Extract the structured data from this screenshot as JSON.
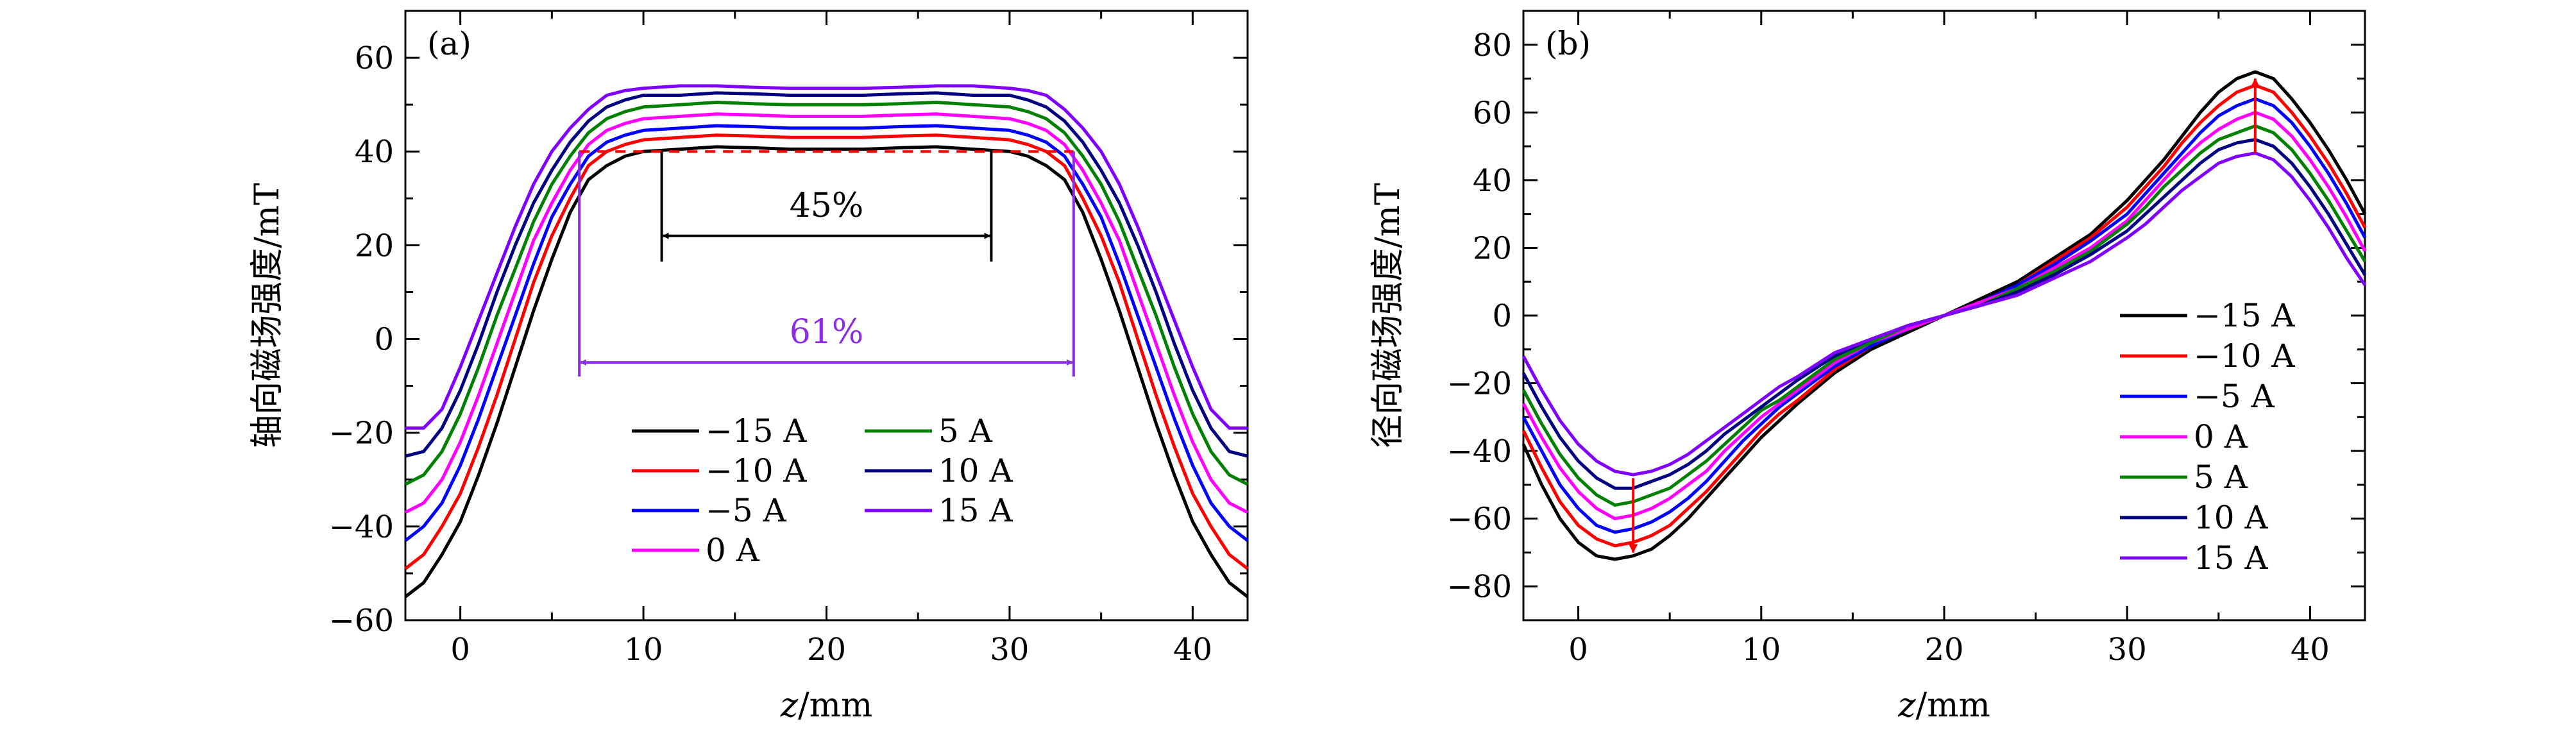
{
  "chart_data": [
    {
      "type": "line",
      "panel_label": "(a)",
      "xlabel": "z/mm",
      "ylabel": "轴向磁场强度/mT",
      "xlim": [
        -3,
        43
      ],
      "ylim": [
        -60,
        70
      ],
      "xticks": [
        0,
        10,
        20,
        30,
        40
      ],
      "yticks": [
        -60,
        -40,
        -20,
        0,
        20,
        40,
        60
      ],
      "x": [
        -3,
        -2,
        -1,
        0,
        1,
        2,
        3,
        4,
        5,
        6,
        7,
        8,
        9,
        10,
        12,
        14,
        16,
        18,
        20,
        22,
        24,
        26,
        28,
        30,
        31,
        32,
        33,
        34,
        35,
        36,
        37,
        38,
        39,
        40,
        41,
        42,
        43
      ],
      "legend_placement": "bottom-center, two columns",
      "series": [
        {
          "name": "−15 A",
          "color": "#000000",
          "values": [
            -55,
            -52,
            -46,
            -39,
            -29,
            -18,
            -6,
            6,
            17,
            27,
            34,
            37,
            39,
            40,
            40.5,
            41,
            40.8,
            40.5,
            40.5,
            40.5,
            40.8,
            41,
            40.5,
            40,
            39,
            37,
            34,
            27,
            17,
            6,
            -6,
            -18,
            -29,
            -39,
            -46,
            -52,
            -55
          ]
        },
        {
          "name": "−10 A",
          "color": "#ff0000",
          "values": [
            -49,
            -46,
            -40,
            -33,
            -23,
            -12,
            0,
            12,
            22,
            30,
            37,
            40,
            41.5,
            42.5,
            43,
            43.5,
            43.3,
            43,
            43,
            43,
            43.3,
            43.5,
            43,
            42.5,
            41.5,
            40,
            37,
            30,
            22,
            12,
            0,
            -12,
            -23,
            -33,
            -40,
            -46,
            -49
          ]
        },
        {
          "name": "−5 A",
          "color": "#0000ff",
          "values": [
            -43,
            -40,
            -35,
            -27,
            -17,
            -6,
            5,
            16,
            26,
            33,
            39,
            42,
            43.5,
            44.5,
            45,
            45.5,
            45.3,
            45,
            45,
            45,
            45.3,
            45.5,
            45,
            44.5,
            43.5,
            42,
            39,
            33,
            26,
            16,
            5,
            -6,
            -17,
            -27,
            -35,
            -40,
            -43
          ]
        },
        {
          "name": "0 A",
          "color": "#ff00ff",
          "values": [
            -37,
            -35,
            -30,
            -22,
            -12,
            -1,
            10,
            21,
            29,
            36,
            41.5,
            44.5,
            46,
            47,
            47.5,
            48,
            47.8,
            47.5,
            47.5,
            47.5,
            47.8,
            48,
            47.5,
            47,
            46,
            44.5,
            41.5,
            36,
            29,
            21,
            10,
            -1,
            -12,
            -22,
            -30,
            -35,
            -37
          ]
        },
        {
          "name": "5 A",
          "color": "#008000",
          "values": [
            -31,
            -29,
            -24,
            -16,
            -6,
            5,
            15,
            25,
            33,
            39,
            44,
            47,
            48.5,
            49.5,
            50,
            50.5,
            50.2,
            50,
            50,
            50,
            50.2,
            50.5,
            50,
            49.5,
            48.5,
            47,
            44,
            39,
            33,
            25,
            15,
            5,
            -6,
            -16,
            -24,
            -29,
            -31
          ]
        },
        {
          "name": "10 A",
          "color": "#000080",
          "values": [
            -25,
            -24,
            -19,
            -11,
            -1,
            10,
            20,
            29,
            36,
            42,
            46.5,
            49.5,
            51,
            52,
            52,
            52.5,
            52.3,
            52,
            52,
            52,
            52.3,
            52.5,
            52,
            52,
            51,
            49.5,
            46.5,
            42,
            36,
            29,
            20,
            10,
            -1,
            -11,
            -19,
            -24,
            -25
          ]
        },
        {
          "name": "15 A",
          "color": "#8000ff",
          "values": [
            -19,
            -19,
            -15,
            -6,
            4,
            14,
            24,
            33,
            40,
            45,
            49,
            52,
            53,
            53.5,
            54,
            54,
            53.7,
            53.5,
            53.5,
            53.5,
            53.7,
            54,
            54,
            53.5,
            53,
            52,
            49,
            45,
            40,
            33,
            24,
            14,
            4,
            -6,
            -15,
            -19,
            -19
          ]
        }
      ],
      "annotations": [
        {
          "text": "45%",
          "color": "#000000",
          "x_from": 11,
          "x_to": 29,
          "y_arrow": 22,
          "y_top": 40
        },
        {
          "text": "61%",
          "color": "#8b2be2",
          "x_from": 6.5,
          "x_to": 33.5,
          "y_arrow": -5,
          "y_top": 40
        }
      ],
      "reference_line": {
        "y": 40,
        "x_from": 6.5,
        "x_to": 33.5,
        "color": "#ff0000",
        "dashed": true
      }
    },
    {
      "type": "line",
      "panel_label": "(b)",
      "xlabel": "z/mm",
      "ylabel": "径向磁场强度/mT",
      "xlim": [
        -3,
        43
      ],
      "ylim": [
        -90,
        90
      ],
      "xticks": [
        0,
        10,
        20,
        30,
        40
      ],
      "yticks": [
        -80,
        -60,
        -40,
        -20,
        0,
        20,
        40,
        60,
        80
      ],
      "x": [
        -3,
        -2,
        -1,
        0,
        1,
        2,
        3,
        4,
        5,
        6,
        7,
        8,
        9,
        10,
        11,
        12,
        14,
        16,
        18,
        20,
        22,
        24,
        26,
        28,
        30,
        31,
        32,
        33,
        34,
        35,
        36,
        37,
        38,
        39,
        40,
        41,
        42,
        43
      ],
      "legend_placement": "right",
      "series": [
        {
          "name": "−15 A",
          "color": "#000000",
          "values": [
            -38,
            -50,
            -60,
            -67,
            -71,
            -72,
            -71,
            -69,
            -65,
            -60,
            -54,
            -48,
            -42,
            -36,
            -31,
            -26,
            -17,
            -10,
            -5,
            0,
            5,
            10,
            17,
            24,
            34,
            40,
            46,
            53,
            60,
            66,
            70,
            72,
            70,
            64,
            57,
            49,
            40,
            30
          ]
        },
        {
          "name": "−10 A",
          "color": "#ff0000",
          "values": [
            -34,
            -45,
            -55,
            -62,
            -66,
            -68,
            -67,
            -65,
            -62,
            -57,
            -52,
            -46,
            -40,
            -34,
            -29,
            -25,
            -16,
            -9,
            -4,
            0,
            4,
            9,
            16,
            23,
            32,
            38,
            44,
            51,
            57,
            62,
            66,
            68,
            66,
            60,
            53,
            45,
            36,
            26
          ]
        },
        {
          "name": "−5 A",
          "color": "#0000ff",
          "values": [
            -30,
            -40,
            -50,
            -57,
            -62,
            -64,
            -63,
            -61,
            -58,
            -54,
            -49,
            -43,
            -37,
            -32,
            -27,
            -23,
            -15,
            -9,
            -4,
            0,
            4,
            9,
            15,
            22,
            30,
            36,
            42,
            48,
            54,
            59,
            62,
            64,
            62,
            57,
            50,
            42,
            33,
            23
          ]
        },
        {
          "name": "0 A",
          "color": "#ff00ff",
          "values": [
            -26,
            -36,
            -45,
            -52,
            -57,
            -60,
            -59,
            -57,
            -54,
            -50,
            -46,
            -40,
            -35,
            -30,
            -26,
            -22,
            -14,
            -8,
            -4,
            0,
            4,
            8,
            14,
            20,
            28,
            34,
            40,
            46,
            51,
            55,
            58,
            60,
            58,
            53,
            46,
            38,
            29,
            19
          ]
        },
        {
          "name": "5 A",
          "color": "#008000",
          "values": [
            -22,
            -32,
            -41,
            -48,
            -53,
            -56,
            -55,
            -53,
            -51,
            -47,
            -43,
            -38,
            -33,
            -28,
            -25,
            -21,
            -13,
            -8,
            -3,
            0,
            3,
            8,
            13,
            19,
            27,
            32,
            38,
            43,
            48,
            52,
            54,
            56,
            54,
            49,
            42,
            34,
            25,
            16
          ]
        },
        {
          "name": "10 A",
          "color": "#000080",
          "values": [
            -17,
            -27,
            -36,
            -43,
            -48,
            -51,
            -51,
            -49,
            -47,
            -44,
            -40,
            -35,
            -31,
            -27,
            -23,
            -19,
            -12,
            -7,
            -3,
            0,
            3,
            7,
            12,
            18,
            25,
            30,
            35,
            40,
            45,
            49,
            51,
            52,
            50,
            45,
            38,
            30,
            21,
            12
          ]
        },
        {
          "name": "15 A",
          "color": "#8000ff",
          "values": [
            -12,
            -22,
            -31,
            -38,
            -43,
            -46,
            -47,
            -46,
            -44,
            -41,
            -37,
            -33,
            -29,
            -25,
            -21,
            -18,
            -11,
            -7,
            -3,
            0,
            3,
            6,
            11,
            16,
            23,
            27,
            32,
            37,
            41,
            45,
            47,
            48,
            46,
            41,
            34,
            26,
            17,
            9
          ]
        }
      ],
      "annotations": [
        {
          "type": "double-arrow",
          "x": 3,
          "y_from": -48,
          "y_to": -70,
          "color": "#ff0000"
        },
        {
          "type": "double-arrow",
          "x": 37,
          "y_from": 48,
          "y_to": 70,
          "color": "#ff0000"
        }
      ]
    }
  ]
}
